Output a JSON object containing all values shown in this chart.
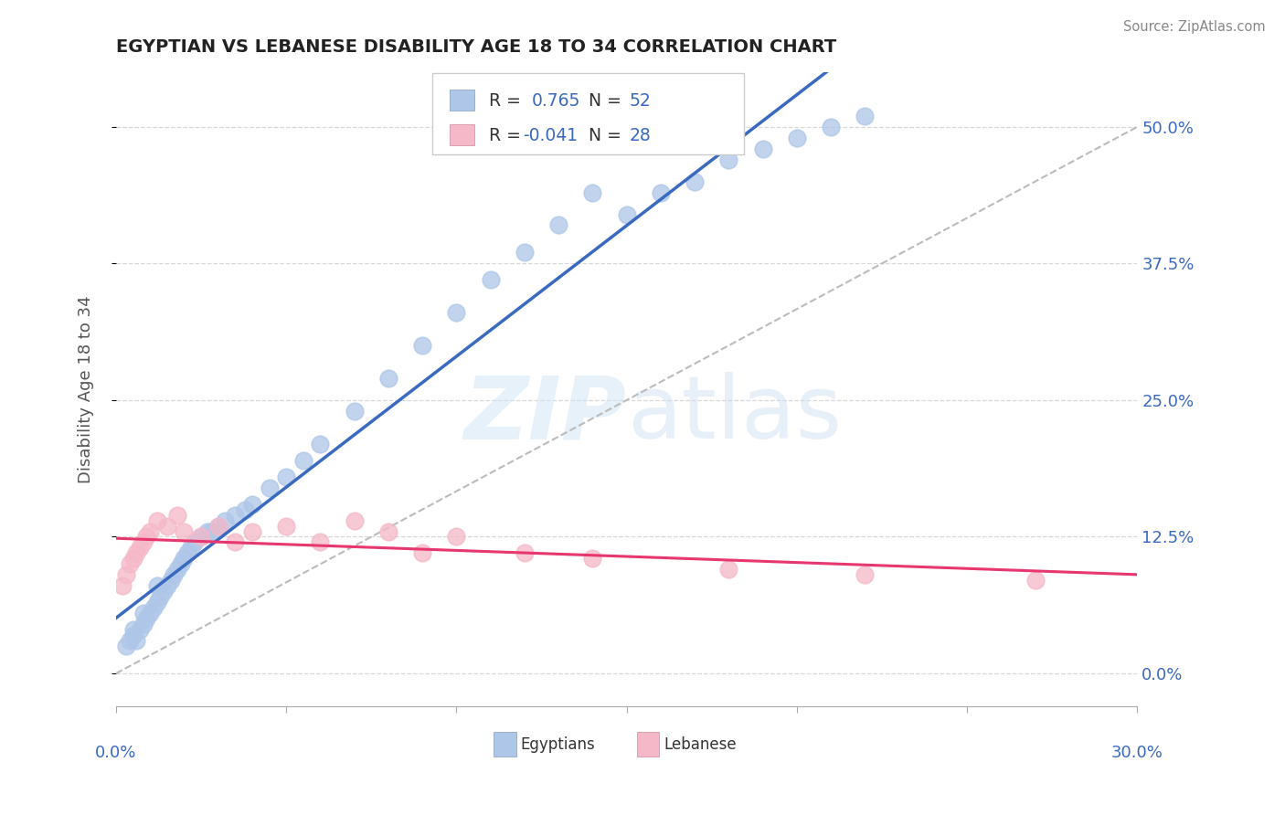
{
  "title": "EGYPTIAN VS LEBANESE DISABILITY AGE 18 TO 34 CORRELATION CHART",
  "source": "Source: ZipAtlas.com",
  "ylabel": "Disability Age 18 to 34",
  "ytick_labels": [
    "0.0%",
    "12.5%",
    "25.0%",
    "37.5%",
    "50.0%"
  ],
  "ytick_vals": [
    0.0,
    12.5,
    25.0,
    37.5,
    50.0
  ],
  "xlim": [
    0.0,
    30.0
  ],
  "ylim": [
    -3.0,
    55.0
  ],
  "blue_color": "#aec6e8",
  "pink_color": "#f5b8c8",
  "blue_line_color": "#3a6abf",
  "pink_line_color": "#e8366e",
  "dashed_color": "#bbbbbb",
  "eg_x": [
    0.3,
    0.4,
    0.5,
    0.6,
    0.7,
    0.8,
    0.9,
    1.0,
    1.1,
    1.2,
    1.3,
    1.4,
    1.5,
    1.6,
    1.7,
    1.8,
    1.9,
    2.0,
    2.1,
    2.2,
    2.3,
    2.5,
    2.7,
    3.0,
    3.2,
    3.5,
    3.8,
    4.0,
    4.5,
    5.0,
    5.5,
    6.0,
    7.0,
    8.0,
    9.0,
    10.0,
    11.0,
    12.0,
    13.0,
    14.0,
    15.0,
    16.0,
    17.0,
    18.0,
    19.0,
    20.0,
    21.0,
    22.0,
    0.5,
    0.8,
    1.2,
    2.8
  ],
  "eg_y": [
    2.5,
    3.0,
    3.5,
    3.0,
    4.0,
    4.5,
    5.0,
    5.5,
    6.0,
    6.5,
    7.0,
    7.5,
    8.0,
    8.5,
    9.0,
    9.5,
    10.0,
    10.5,
    11.0,
    11.5,
    12.0,
    12.5,
    13.0,
    13.5,
    14.0,
    14.5,
    15.0,
    15.5,
    17.0,
    18.0,
    19.5,
    21.0,
    24.0,
    27.0,
    30.0,
    33.0,
    36.0,
    38.5,
    41.0,
    44.0,
    42.0,
    44.0,
    45.0,
    47.0,
    48.0,
    49.0,
    50.0,
    51.0,
    4.0,
    5.5,
    8.0,
    13.0
  ],
  "lb_x": [
    0.2,
    0.3,
    0.4,
    0.5,
    0.6,
    0.7,
    0.8,
    0.9,
    1.0,
    1.2,
    1.5,
    1.8,
    2.0,
    2.5,
    3.0,
    3.5,
    4.0,
    5.0,
    6.0,
    7.0,
    8.0,
    9.0,
    10.0,
    12.0,
    14.0,
    18.0,
    22.0,
    27.0
  ],
  "lb_y": [
    8.0,
    9.0,
    10.0,
    10.5,
    11.0,
    11.5,
    12.0,
    12.5,
    13.0,
    14.0,
    13.5,
    14.5,
    13.0,
    12.5,
    13.5,
    12.0,
    13.0,
    13.5,
    12.0,
    14.0,
    13.0,
    11.0,
    12.5,
    11.0,
    10.5,
    9.5,
    9.0,
    8.5
  ]
}
